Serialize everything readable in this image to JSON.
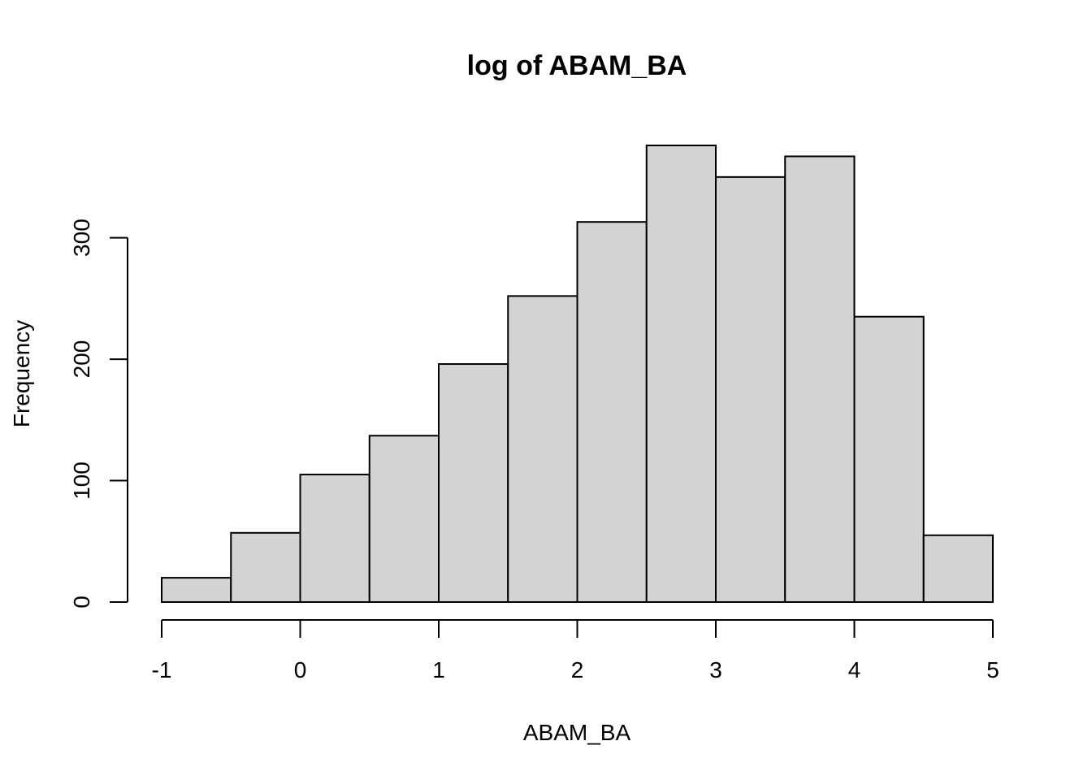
{
  "chart_data": {
    "type": "bar",
    "title": "log of ABAM_BA",
    "xlabel": "ABAM_BA",
    "ylabel": "Frequency",
    "bin_edges": [
      -1,
      -0.5,
      0,
      0.5,
      1,
      1.5,
      2,
      2.5,
      3,
      3.5,
      4,
      4.5,
      5
    ],
    "values": [
      20,
      57,
      105,
      137,
      196,
      252,
      313,
      376,
      350,
      367,
      235,
      55
    ],
    "xlim": [
      -1,
      5
    ],
    "ylim": [
      0,
      376
    ],
    "x_ticks": [
      -1,
      0,
      1,
      2,
      3,
      4,
      5
    ],
    "x_tick_labels": [
      "-1",
      "0",
      "1",
      "2",
      "3",
      "4",
      "5"
    ],
    "y_ticks": [
      0,
      100,
      200,
      300
    ],
    "y_tick_labels": [
      "0",
      "100",
      "200",
      "300"
    ],
    "bar_color": "#d3d3d3",
    "grid": false,
    "legend": "none"
  }
}
